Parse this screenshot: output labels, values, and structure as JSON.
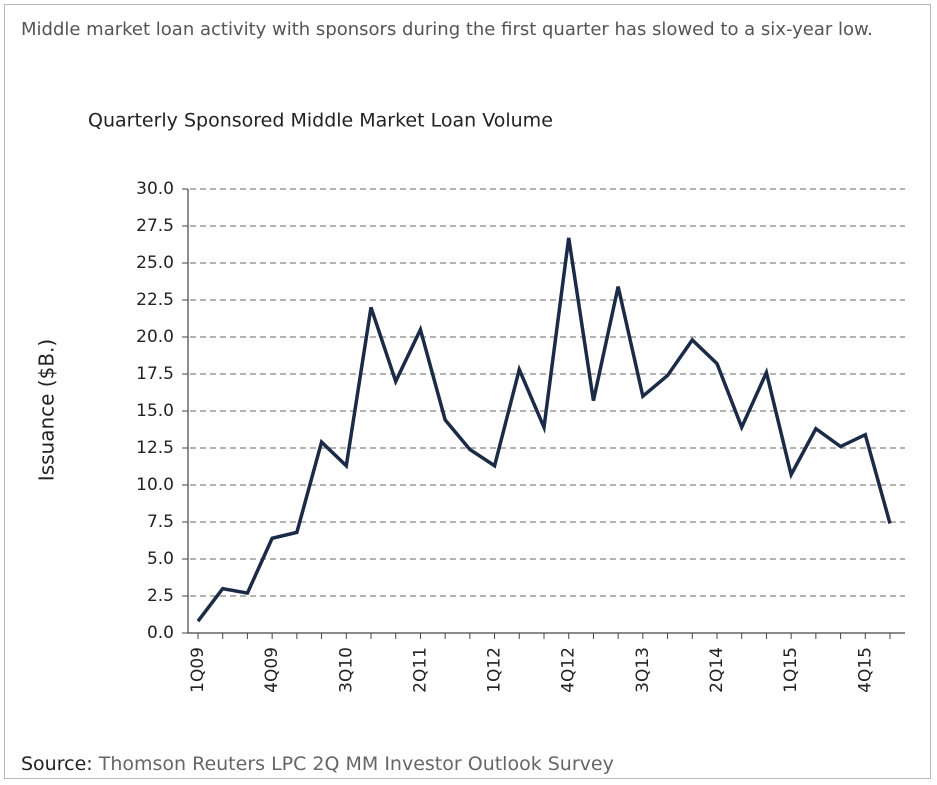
{
  "intro": "Middle market loan activity with sponsors during the first quarter has slowed to a six-year low.",
  "source_label": "Source:",
  "source": "Thomson Reuters LPC 2Q MM Investor Outlook Survey",
  "chart_data": {
    "type": "line",
    "title": "Quarterly Sponsored Middle Market Loan Volume",
    "y_label": "Issuance ($B.)",
    "categories": [
      "1Q09",
      null,
      null,
      "4Q09",
      null,
      null,
      "3Q10",
      null,
      null,
      "2Q11",
      null,
      null,
      "1Q12",
      null,
      null,
      "4Q12",
      null,
      null,
      "3Q13",
      null,
      null,
      "2Q14",
      null,
      null,
      "1Q15",
      null,
      null,
      "4Q15",
      null
    ],
    "values": [
      0.8,
      3.0,
      2.7,
      6.4,
      6.8,
      12.9,
      11.3,
      22.0,
      17.0,
      20.5,
      14.4,
      12.4,
      11.3,
      17.8,
      13.9,
      26.7,
      15.7,
      23.4,
      16.0,
      17.4,
      19.8,
      18.2,
      13.9,
      17.6,
      10.7,
      13.8,
      12.6,
      13.4,
      7.4
    ],
    "color": "#1b2a47",
    "ylim": [
      0,
      30
    ],
    "yticks": [
      {
        "value": 0,
        "label": "0.0"
      },
      2.5,
      {
        "value": 5,
        "label": "5.0"
      },
      7.5,
      {
        "value": 10,
        "label": "10.0"
      },
      12.5,
      {
        "value": 15,
        "label": "15.0"
      },
      17.5,
      {
        "value": 20,
        "label": "20.0"
      },
      22.5,
      {
        "value": 25,
        "label": "25.0"
      },
      27.5,
      {
        "value": 30,
        "label": "30.0"
      }
    ],
    "grid": true
  }
}
